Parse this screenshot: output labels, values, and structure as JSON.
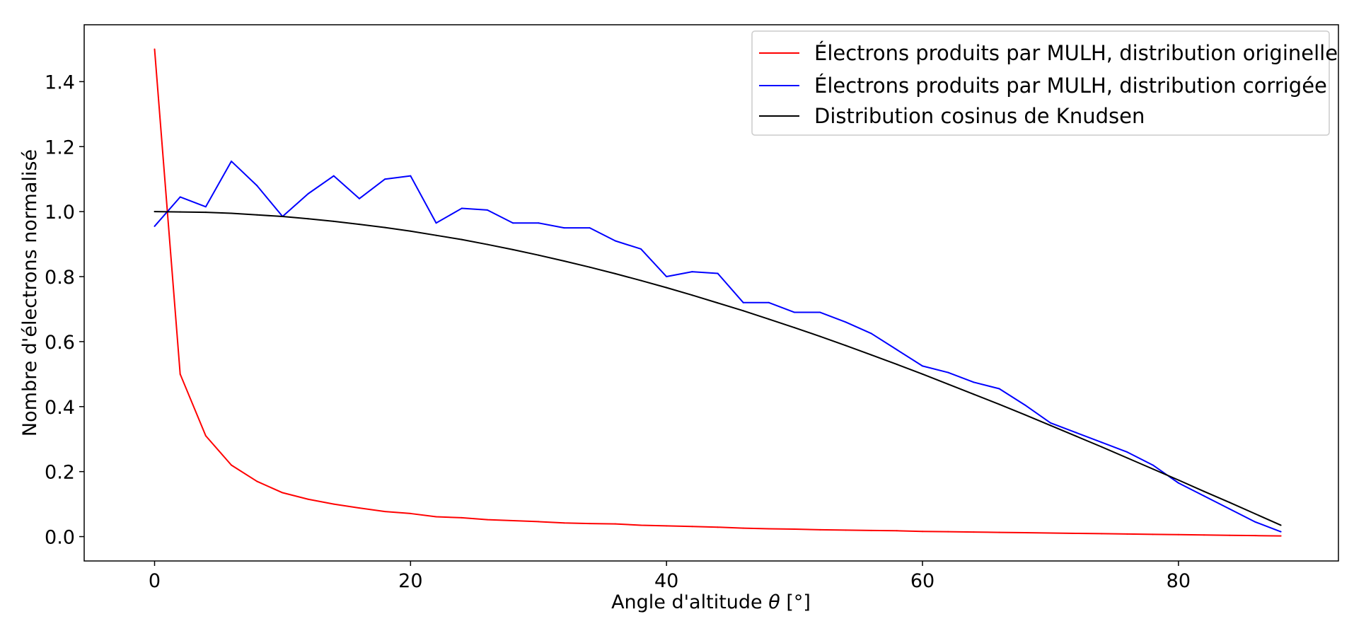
{
  "chart_data": {
    "type": "line",
    "title": "",
    "xlabel_prefix": "Angle d'altitude ",
    "xlabel_symbol": "θ",
    "xlabel_suffix": " [°]",
    "ylabel": "Nombre d'électrons normalisé",
    "xlim": [
      -5.5,
      92.5
    ],
    "ylim": [
      -0.075,
      1.575
    ],
    "x_ticks": [
      0,
      20,
      40,
      60,
      80
    ],
    "x_tick_labels": [
      "0",
      "20",
      "40",
      "60",
      "80"
    ],
    "y_ticks": [
      0.0,
      0.2,
      0.4,
      0.6,
      0.8,
      1.0,
      1.2,
      1.4
    ],
    "y_tick_labels": [
      "0.0",
      "0.2",
      "0.4",
      "0.6",
      "0.8",
      "1.0",
      "1.2",
      "1.4"
    ],
    "grid": false,
    "legend_position": "top-right",
    "x": [
      0,
      2,
      4,
      6,
      8,
      10,
      12,
      14,
      16,
      18,
      20,
      22,
      24,
      26,
      28,
      30,
      32,
      34,
      36,
      38,
      40,
      42,
      44,
      46,
      48,
      50,
      52,
      54,
      56,
      58,
      60,
      62,
      64,
      66,
      68,
      70,
      72,
      74,
      76,
      78,
      80,
      82,
      84,
      86,
      88
    ],
    "series": [
      {
        "name": "Électrons produits par MULH, distribution originelle",
        "color": "#ff0000",
        "values": [
          1.5,
          0.5,
          0.31,
          0.22,
          0.17,
          0.135,
          0.115,
          0.1,
          0.088,
          0.077,
          0.071,
          0.061,
          0.058,
          0.052,
          0.049,
          0.046,
          0.042,
          0.04,
          0.039,
          0.035,
          0.033,
          0.031,
          0.029,
          0.026,
          0.024,
          0.023,
          0.021,
          0.02,
          0.019,
          0.018,
          0.016,
          0.015,
          0.014,
          0.013,
          0.012,
          0.011,
          0.01,
          0.009,
          0.008,
          0.007,
          0.006,
          0.005,
          0.004,
          0.003,
          0.002
        ]
      },
      {
        "name": "Électrons produits par MULH, distribution corrigée",
        "color": "#0000ff",
        "values": [
          0.955,
          1.045,
          1.015,
          1.155,
          1.08,
          0.985,
          1.055,
          1.11,
          1.04,
          1.1,
          1.11,
          0.965,
          1.01,
          1.005,
          0.965,
          0.965,
          0.95,
          0.95,
          0.91,
          0.885,
          0.8,
          0.815,
          0.81,
          0.72,
          0.72,
          0.69,
          0.69,
          0.66,
          0.625,
          0.575,
          0.525,
          0.505,
          0.475,
          0.455,
          0.405,
          0.35,
          0.32,
          0.29,
          0.26,
          0.22,
          0.165,
          0.125,
          0.085,
          0.045,
          0.015
        ]
      },
      {
        "name": "Distribution cosinus de Knudsen",
        "color": "#000000",
        "values": [
          1.0,
          0.999,
          0.998,
          0.995,
          0.99,
          0.985,
          0.978,
          0.97,
          0.961,
          0.951,
          0.94,
          0.927,
          0.914,
          0.899,
          0.883,
          0.866,
          0.848,
          0.829,
          0.809,
          0.788,
          0.766,
          0.743,
          0.719,
          0.695,
          0.669,
          0.643,
          0.616,
          0.588,
          0.559,
          0.53,
          0.5,
          0.469,
          0.438,
          0.407,
          0.375,
          0.342,
          0.309,
          0.276,
          0.242,
          0.208,
          0.174,
          0.139,
          0.105,
          0.07,
          0.035
        ]
      }
    ]
  }
}
